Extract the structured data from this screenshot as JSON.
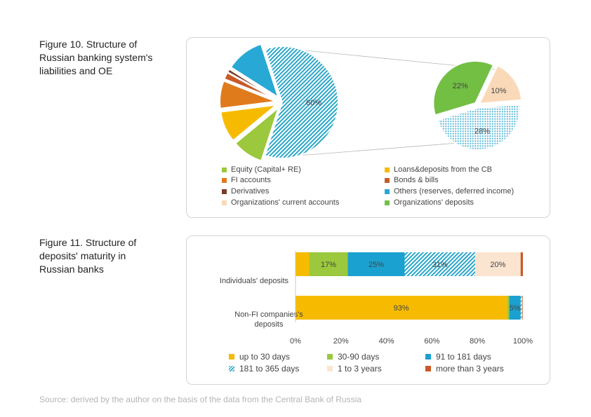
{
  "figure10": {
    "title_line1": "Figure 10. Structure of",
    "title_line2": "Russian banking system's",
    "title_line3": "liabilities and OE"
  },
  "figure11": {
    "title_line1": "Figure 11. Structure of",
    "title_line2": "deposits' maturity in",
    "title_line3": "Russian banks"
  },
  "source": "Source: derived by the author on the basis of the data from the Central Bank of Russia",
  "chart_data": [
    {
      "type": "pie",
      "title": "Figure 10. Structure of Russian banking system's liabilities and OE",
      "slices": [
        {
          "name": "Equity (Capital+ RE)",
          "value": 9,
          "color": "#9bc83c",
          "label": ""
        },
        {
          "name": "Loans&deposits from the CB",
          "value": 9,
          "color": "#f6bb00",
          "label": ""
        },
        {
          "name": "FI accounts",
          "value": 8,
          "color": "#e07b1c",
          "label": ""
        },
        {
          "name": "Bonds & bills",
          "value": 2,
          "color": "#c85a28",
          "label": ""
        },
        {
          "name": "Derivatives",
          "value": 1,
          "color": "#7a3c28",
          "label": ""
        },
        {
          "name": "Others (reserves, deferred income)",
          "value": 11,
          "color": "#28a8d4",
          "label": ""
        },
        {
          "name": "Deposits",
          "value": 60,
          "color": "#2aa6c9",
          "pattern": "hatch",
          "label": "60%"
        }
      ],
      "breakout": {
        "type": "pie",
        "slices": [
          {
            "name": "Organizations' deposits",
            "value": 22,
            "color": "#72bf44",
            "label": "22%"
          },
          {
            "name": "Individuals' deposits",
            "value": 28,
            "color": "#5bb8d8",
            "pattern": "dots",
            "label": "28%"
          },
          {
            "name": "Organizations' current accounts",
            "value": 10,
            "color": "#f9d9b8",
            "label": "10%"
          }
        ]
      },
      "legend": [
        {
          "label": "Equity (Capital+ RE)",
          "color": "#9bc83c"
        },
        {
          "label": "Loans&deposits from the CB",
          "color": "#f6bb00"
        },
        {
          "label": "FI accounts",
          "color": "#e07b1c"
        },
        {
          "label": "Bonds & bills",
          "color": "#c85a28"
        },
        {
          "label": "Derivatives",
          "color": "#7a3c28"
        },
        {
          "label": "Others (reserves, deferred income)",
          "color": "#28a8d4"
        },
        {
          "label": "Organizations' current accounts",
          "color": "#f9d9b8"
        },
        {
          "label": "Organizations' deposits",
          "color": "#72bf44"
        }
      ],
      "legend_placement": "bottom"
    },
    {
      "type": "bar",
      "orientation": "horizontal",
      "stacked": "percent",
      "title": "Figure 11. Structure of deposits' maturity in Russian banks",
      "categories": [
        "Individuals' deposits",
        "Non-FI companies's deposits"
      ],
      "category_lines": [
        [
          "Individuals' deposits"
        ],
        [
          "Non-FI companies's",
          "deposits"
        ]
      ],
      "series": [
        {
          "name": "up to 30 days",
          "color": "#f6bb00",
          "values": [
            6,
            93
          ],
          "labels": [
            "",
            "93%"
          ]
        },
        {
          "name": "30-90 days",
          "color": "#9bc83c",
          "values": [
            17,
            1
          ],
          "labels": [
            "17%",
            ""
          ]
        },
        {
          "name": "91 to 181 days",
          "color": "#1ba1d0",
          "values": [
            25,
            5
          ],
          "labels": [
            "25%",
            "5%"
          ]
        },
        {
          "name": "181 to 365 days",
          "color": "#2aa6c9",
          "pattern": "hatch",
          "values": [
            31,
            0.5
          ],
          "labels": [
            "31%",
            ""
          ]
        },
        {
          "name": "1 to 3 years",
          "color": "#fbe4d0",
          "values": [
            20,
            0.3
          ],
          "labels": [
            "20%",
            ""
          ]
        },
        {
          "name": "more than 3 years",
          "color": "#c85a28",
          "values": [
            1,
            0.2
          ],
          "labels": [
            "",
            ""
          ]
        }
      ],
      "xlim": [
        0,
        100
      ],
      "xticks": [
        "0%",
        "20%",
        "40%",
        "60%",
        "80%",
        "100%"
      ],
      "grid": false,
      "legend_placement": "bottom"
    }
  ]
}
